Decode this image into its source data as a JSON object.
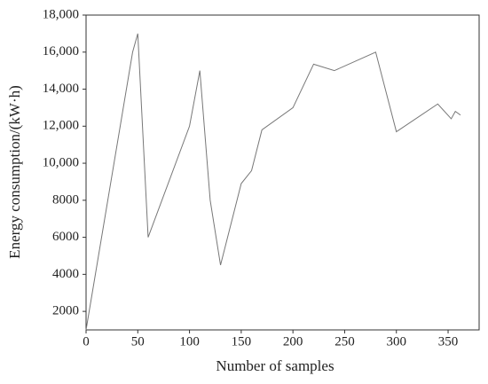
{
  "chart_data": {
    "type": "line",
    "x_label": "Number of samples",
    "y_label": "Energy consumption/(kW·h)",
    "xlim": [
      0,
      380
    ],
    "xticks": [
      0,
      50,
      100,
      150,
      200,
      250,
      300,
      350
    ],
    "ylim": [
      1000,
      18000
    ],
    "yticks": [
      2000,
      4000,
      6000,
      8000,
      {
        "value": 10000,
        "label": "10,000"
      },
      {
        "value": 12000,
        "label": "12,000"
      },
      {
        "value": 14000,
        "label": "14,000"
      },
      {
        "value": 16000,
        "label": "16,000"
      },
      {
        "value": 18000,
        "label": "18,000"
      }
    ],
    "series": [
      {
        "color": "#777777",
        "x": [
          0,
          45,
          50,
          60,
          100,
          110,
          120,
          130,
          150,
          160,
          170,
          200,
          220,
          240,
          280,
          300,
          340,
          353,
          357,
          362
        ],
        "values": [
          1000,
          16000,
          17000,
          6000,
          12000,
          15000,
          8000,
          4500,
          8900,
          9600,
          11800,
          13000,
          15350,
          15000,
          16000,
          11700,
          13200,
          12400,
          12800,
          12600
        ]
      }
    ]
  }
}
